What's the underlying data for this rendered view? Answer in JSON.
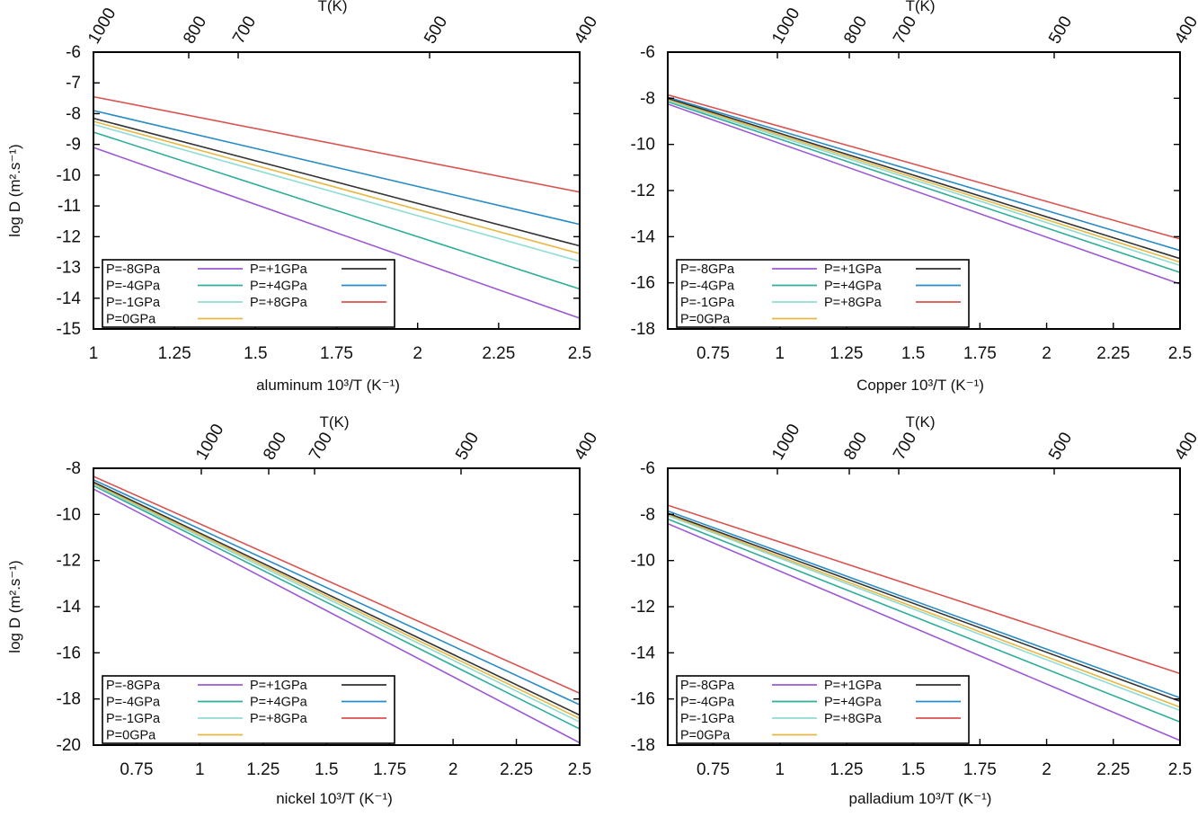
{
  "figure": {
    "ylabel": "log D (m².s⁻¹)"
  },
  "chart_data": [
    {
      "type": "line",
      "xlabel": "aluminum   10³/T (K⁻¹)",
      "ylabel": "log D (m².s⁻¹)",
      "top_axis_label": "T(K)",
      "xlim": [
        1,
        2.5
      ],
      "ylim": [
        -15,
        -6
      ],
      "xticks": [
        "1",
        "1.25",
        "1.5",
        "1.75",
        "2",
        "2.25",
        "2.5"
      ],
      "yticks": [
        "-6",
        "-7",
        "-8",
        "-9",
        "-10",
        "-11",
        "-12",
        "-13",
        "-14",
        "-15"
      ],
      "top_ticks": [
        "1000",
        "800",
        "700",
        "500",
        "400"
      ],
      "grid": false,
      "legend_position": "bottom-left",
      "series": [
        {
          "name": "P=-8GPa",
          "color": "#9b59d6",
          "x": [
            1,
            2.5
          ],
          "y": [
            -9.1,
            -14.65
          ]
        },
        {
          "name": "P=-4GPa",
          "color": "#2fae9a",
          "x": [
            1,
            2.5
          ],
          "y": [
            -8.6,
            -13.7
          ]
        },
        {
          "name": "P=-1GPa",
          "color": "#8fdcd4",
          "x": [
            1,
            2.5
          ],
          "y": [
            -8.35,
            -12.8
          ]
        },
        {
          "name": "P=0GPa",
          "color": "#e8b844",
          "x": [
            1,
            2.5
          ],
          "y": [
            -8.25,
            -12.55
          ]
        },
        {
          "name": "P=+1GPa",
          "color": "#333333",
          "x": [
            1,
            2.5
          ],
          "y": [
            -8.15,
            -12.3
          ]
        },
        {
          "name": "P=+4GPa",
          "color": "#2a8cc4",
          "x": [
            1,
            2.5
          ],
          "y": [
            -7.9,
            -11.6
          ]
        },
        {
          "name": "P=+8GPa",
          "color": "#d9534f",
          "x": [
            1,
            2.5
          ],
          "y": [
            -7.45,
            -10.55
          ]
        }
      ]
    },
    {
      "type": "line",
      "xlabel": "Copper   10³/T (K⁻¹)",
      "top_axis_label": "T(K)",
      "xlim": [
        0.58,
        2.5
      ],
      "ylim": [
        -18,
        -6
      ],
      "xticks": [
        "0.75",
        "1",
        "1.25",
        "1.5",
        "1.75",
        "2",
        "2.25",
        "2.5"
      ],
      "yticks": [
        "-6",
        "-8",
        "-10",
        "-12",
        "-14",
        "-16",
        "-18"
      ],
      "top_ticks": [
        "1000",
        "800",
        "700",
        "500",
        "400"
      ],
      "grid": false,
      "legend_position": "bottom-left",
      "series": [
        {
          "name": "P=-8GPa",
          "color": "#9b59d6",
          "x": [
            0.58,
            2.5
          ],
          "y": [
            -8.25,
            -16.05
          ]
        },
        {
          "name": "P=-4GPa",
          "color": "#2fae9a",
          "x": [
            0.58,
            2.5
          ],
          "y": [
            -8.15,
            -15.55
          ]
        },
        {
          "name": "P=-1GPa",
          "color": "#8fdcd4",
          "x": [
            0.58,
            2.5
          ],
          "y": [
            -8.1,
            -15.25
          ]
        },
        {
          "name": "P=0GPa",
          "color": "#e8b844",
          "x": [
            0.58,
            2.5
          ],
          "y": [
            -8.05,
            -15.1
          ]
        },
        {
          "name": "P=+1GPa",
          "color": "#333333",
          "x": [
            0.58,
            2.5
          ],
          "y": [
            -8.0,
            -14.95
          ]
        },
        {
          "name": "P=+4GPa",
          "color": "#2a8cc4",
          "x": [
            0.58,
            2.5
          ],
          "y": [
            -7.95,
            -14.6
          ]
        },
        {
          "name": "P=+8GPa",
          "color": "#d9534f",
          "x": [
            0.58,
            2.5
          ],
          "y": [
            -7.85,
            -14.1
          ]
        }
      ]
    },
    {
      "type": "line",
      "xlabel": "nickel   10³/T (K⁻¹)",
      "ylabel": "log D (m².s⁻¹)",
      "top_axis_label": "T(K)",
      "xlim": [
        0.58,
        2.5
      ],
      "ylim": [
        -20,
        -8
      ],
      "xticks": [
        "0.75",
        "1",
        "1.25",
        "1.5",
        "1.75",
        "2",
        "2.25",
        "2.5"
      ],
      "yticks": [
        "-8",
        "-10",
        "-12",
        "-14",
        "-16",
        "-18",
        "-20"
      ],
      "top_ticks": [
        "1000",
        "800",
        "700",
        "500",
        "400"
      ],
      "grid": false,
      "legend_position": "bottom-left",
      "series": [
        {
          "name": "P=-8GPa",
          "color": "#9b59d6",
          "x": [
            0.58,
            2.5
          ],
          "y": [
            -8.9,
            -19.9
          ]
        },
        {
          "name": "P=-4GPa",
          "color": "#2fae9a",
          "x": [
            0.58,
            2.5
          ],
          "y": [
            -8.75,
            -19.3
          ]
        },
        {
          "name": "P=-1GPa",
          "color": "#8fdcd4",
          "x": [
            0.58,
            2.5
          ],
          "y": [
            -8.7,
            -19.0
          ]
        },
        {
          "name": "P=0GPa",
          "color": "#e8b844",
          "x": [
            0.58,
            2.5
          ],
          "y": [
            -8.65,
            -18.85
          ]
        },
        {
          "name": "P=+1GPa",
          "color": "#333333",
          "x": [
            0.58,
            2.5
          ],
          "y": [
            -8.6,
            -18.7
          ]
        },
        {
          "name": "P=+4GPa",
          "color": "#2a8cc4",
          "x": [
            0.58,
            2.5
          ],
          "y": [
            -8.5,
            -18.25
          ]
        },
        {
          "name": "P=+8GPa",
          "color": "#d9534f",
          "x": [
            0.58,
            2.5
          ],
          "y": [
            -8.35,
            -17.75
          ]
        }
      ]
    },
    {
      "type": "line",
      "xlabel": "palladium   10³/T (K⁻¹)",
      "top_axis_label": "T(K)",
      "xlim": [
        0.58,
        2.5
      ],
      "ylim": [
        -18,
        -6
      ],
      "xticks": [
        "0.75",
        "1",
        "1.25",
        "1.5",
        "1.75",
        "2",
        "2.25",
        "2.5"
      ],
      "yticks": [
        "-6",
        "-8",
        "-10",
        "-12",
        "-14",
        "-16",
        "-18"
      ],
      "top_ticks": [
        "1000",
        "800",
        "700",
        "500",
        "400"
      ],
      "grid": false,
      "legend_position": "bottom-left",
      "series": [
        {
          "name": "P=-8GPa",
          "color": "#9b59d6",
          "x": [
            0.58,
            2.5
          ],
          "y": [
            -8.4,
            -17.8
          ]
        },
        {
          "name": "P=-4GPa",
          "color": "#2fae9a",
          "x": [
            0.58,
            2.5
          ],
          "y": [
            -8.2,
            -17.0
          ]
        },
        {
          "name": "P=-1GPa",
          "color": "#8fdcd4",
          "x": [
            0.58,
            2.5
          ],
          "y": [
            -8.05,
            -16.5
          ]
        },
        {
          "name": "P=0GPa",
          "color": "#e8b844",
          "x": [
            0.58,
            2.5
          ],
          "y": [
            -8.0,
            -16.35
          ]
        },
        {
          "name": "P=+1GPa",
          "color": "#333333",
          "x": [
            0.58,
            2.5
          ],
          "y": [
            -7.95,
            -16.1
          ]
        },
        {
          "name": "P=+4GPa",
          "color": "#2a8cc4",
          "x": [
            0.58,
            2.5
          ],
          "y": [
            -7.85,
            -15.95
          ]
        },
        {
          "name": "P=+8GPa",
          "color": "#d9534f",
          "x": [
            0.58,
            2.5
          ],
          "y": [
            -7.6,
            -14.9
          ]
        }
      ]
    }
  ]
}
